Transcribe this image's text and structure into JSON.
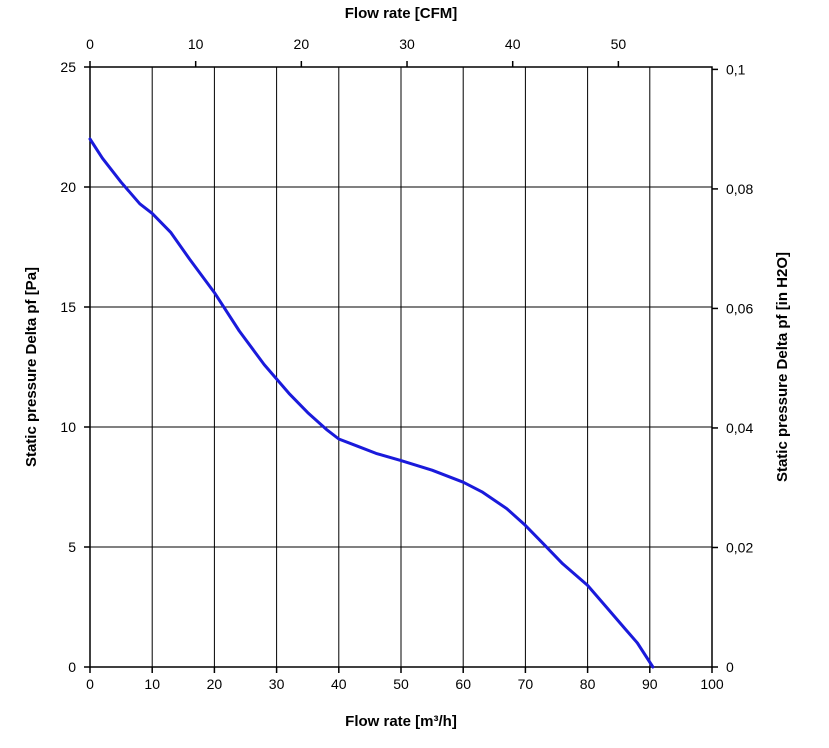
{
  "chart_data": {
    "type": "line",
    "title": "",
    "xlabel": "Flow rate [m³/h]",
    "ylabel": "Static pressure Delta pf [Pa]",
    "x2label": "Flow rate [CFM]",
    "y2label": "Static pressure Delta pf [in H2O]",
    "xlim": [
      0,
      100
    ],
    "ylim": [
      0,
      25
    ],
    "x2lim": [
      0,
      58.86
    ],
    "y2lim": [
      0,
      0.1004
    ],
    "grid": true,
    "xticks": [
      "0",
      "10",
      "20",
      "30",
      "40",
      "50",
      "60",
      "70",
      "80",
      "90",
      "100"
    ],
    "yticks": [
      "0",
      "5",
      "10",
      "15",
      "20",
      "25"
    ],
    "x2ticks": [
      "0",
      "10",
      "20",
      "30",
      "40",
      "50"
    ],
    "y2ticks": [
      "0",
      "0,02",
      "0,04",
      "0,06",
      "0,08",
      "0,1"
    ],
    "series_color": "#1a1adb",
    "series": [
      {
        "x": [
          0,
          2,
          5,
          8,
          10,
          13,
          16,
          20,
          24,
          28,
          30,
          32,
          35,
          38,
          40,
          43,
          46,
          50,
          55,
          60,
          63,
          67,
          70,
          73,
          76,
          80,
          83,
          86,
          88,
          90.5
        ],
        "y": [
          22,
          21.2,
          20.2,
          19.3,
          18.9,
          18.1,
          17.0,
          15.6,
          14.0,
          12.6,
          12.0,
          11.4,
          10.6,
          9.9,
          9.5,
          9.2,
          8.9,
          8.6,
          8.2,
          7.7,
          7.3,
          6.6,
          5.9,
          5.1,
          4.3,
          3.4,
          2.5,
          1.6,
          1.0,
          0
        ]
      }
    ]
  }
}
